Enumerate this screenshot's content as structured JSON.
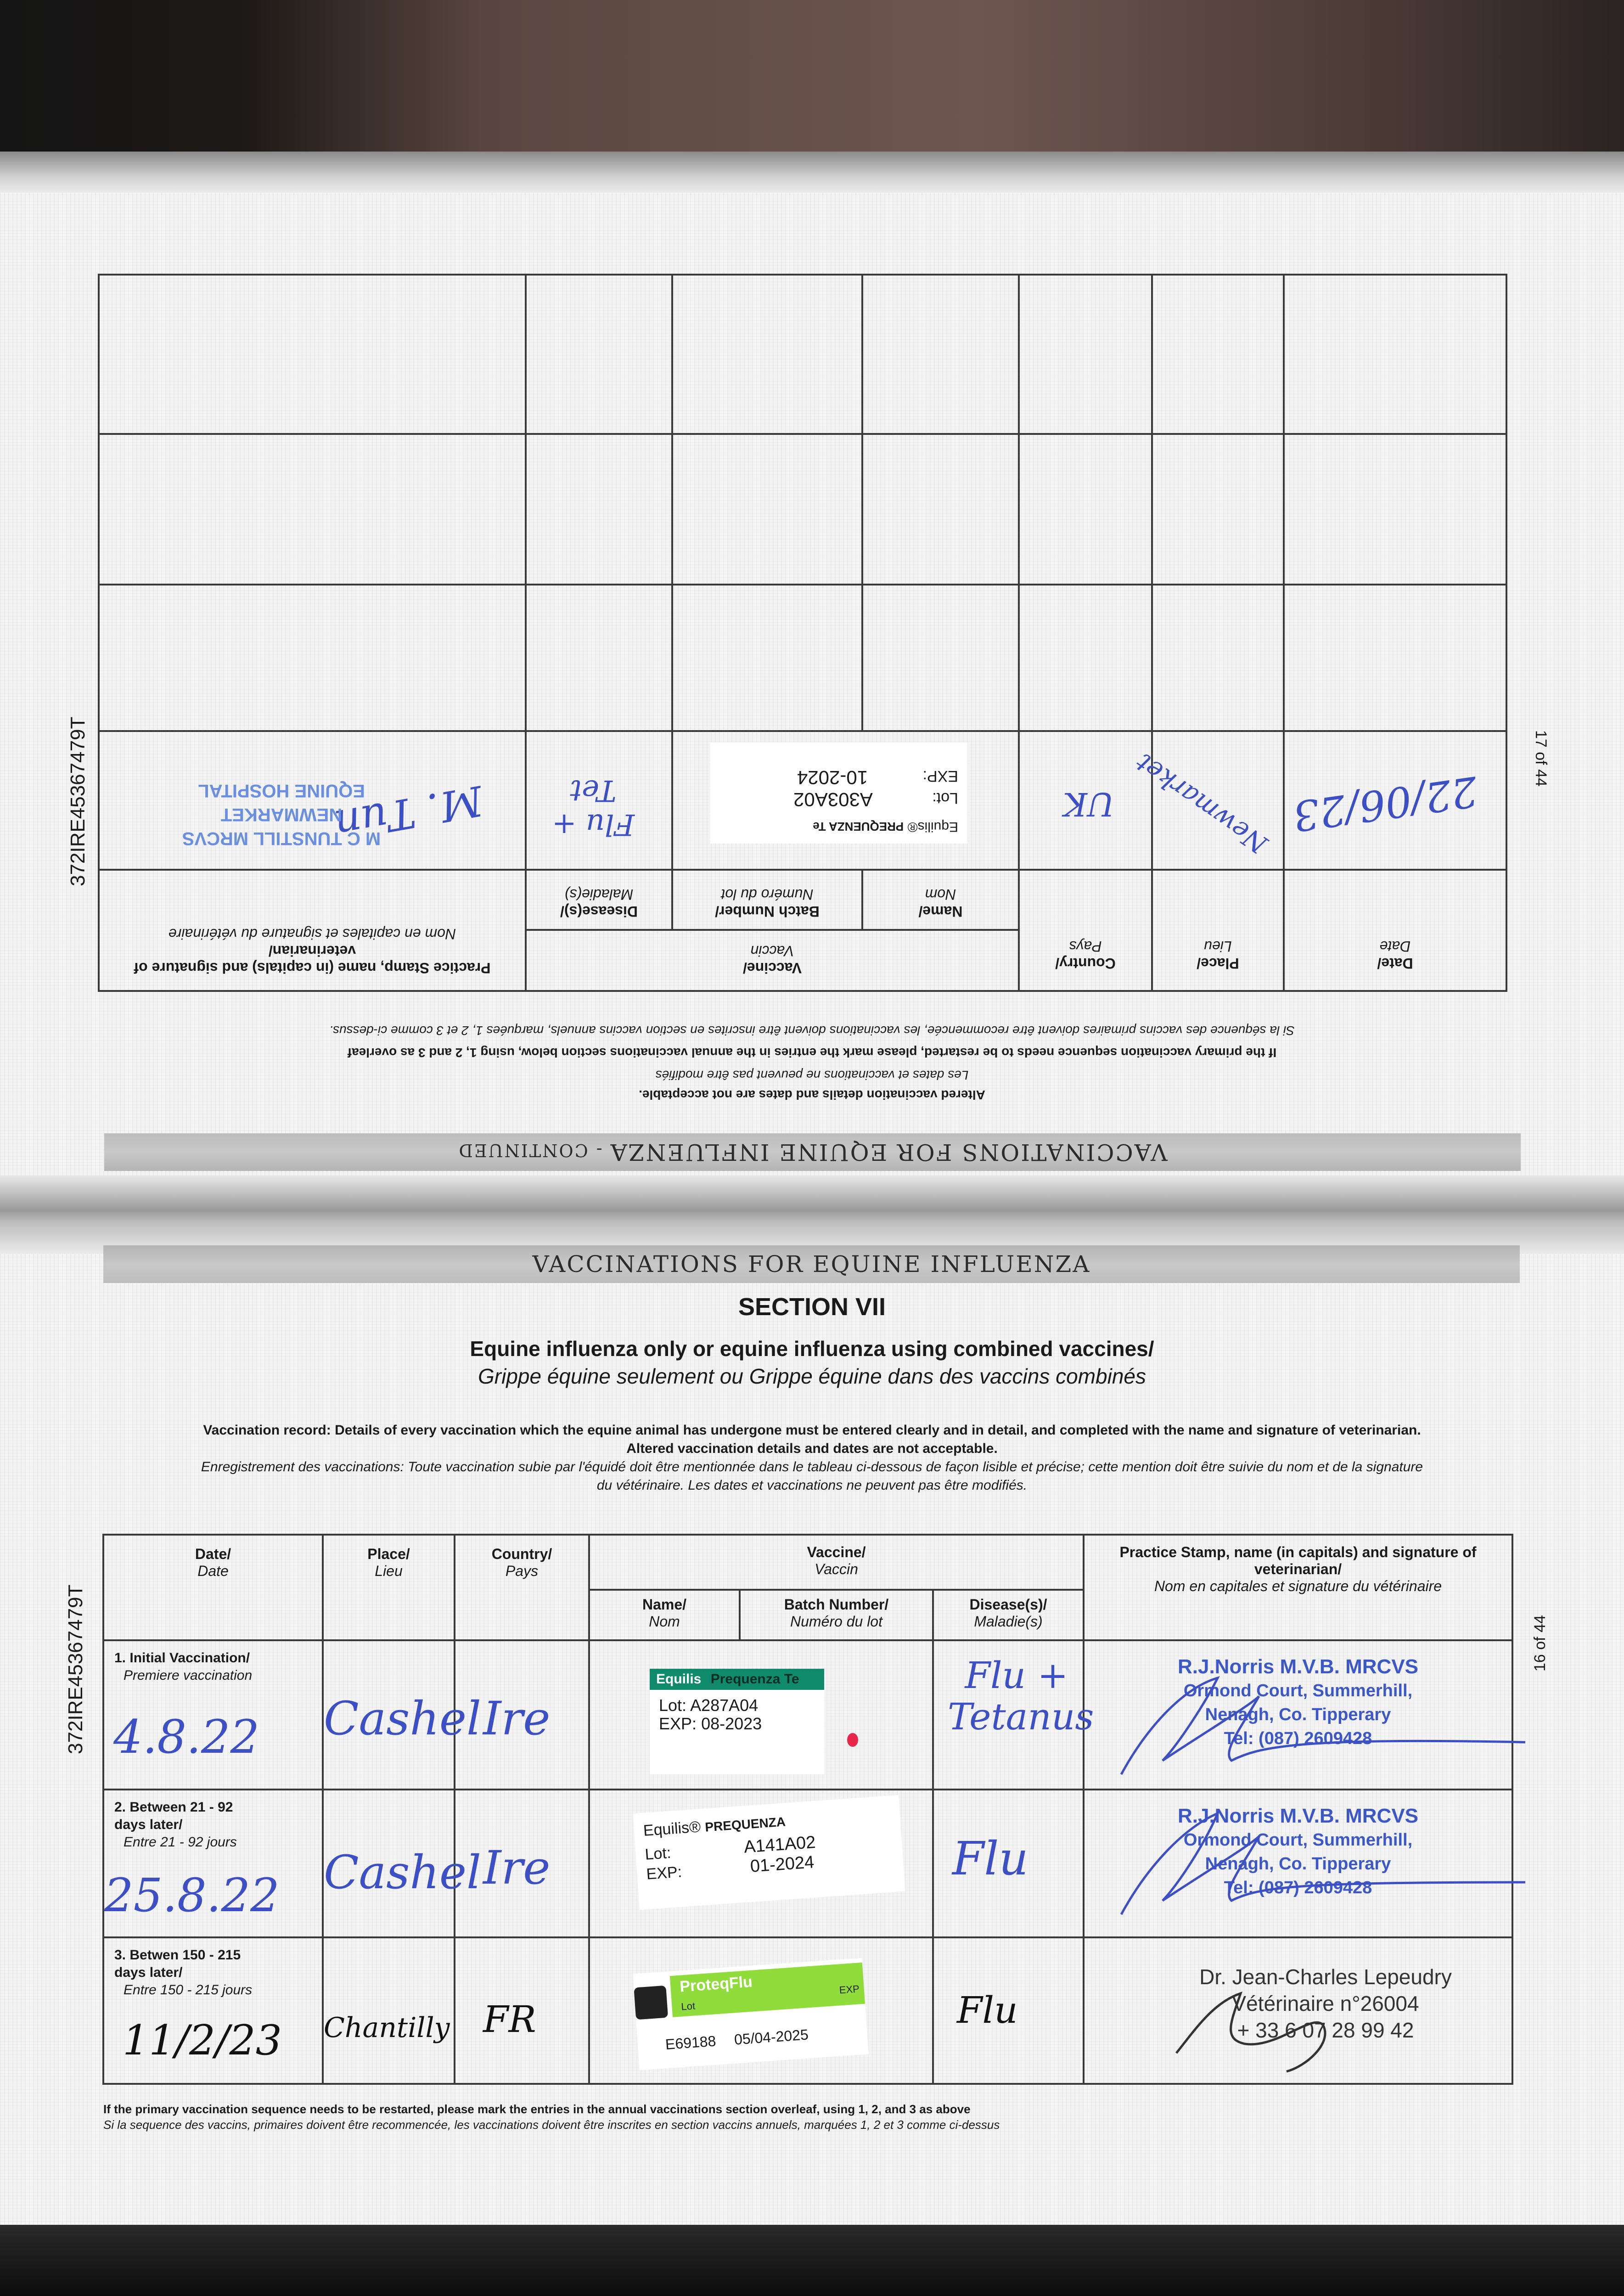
{
  "document_id": "372IRE45367479T",
  "colors": {
    "ink_blue": "#3d4fc4",
    "stamp_blue": "#3c57c8",
    "label_green": "#0f8a6a",
    "proteq_green": "#8fdc3a",
    "band_gray": "#bdbdbd"
  },
  "upper_page": {
    "page_number": "17 of 44",
    "band_title": "VACCINATIONS FOR EQUINE INFLUENZA",
    "band_suffix": " - CONTINUED",
    "notes": [
      "Altered vaccination details and dates are not acceptable.",
      "Les dates et vaccinations ne peuvent pas être modifiés",
      "If the primary vaccination sequence needs to be restarted, please mark the entries in the annual vaccinations section below, using 1, 2 and 3 as overleaf",
      "Si la séquence des vaccins primaires doivent être recommencée, les vaccinations doivent être inscrites en section vaccins annuels, marquées 1, 2 et 3 comme ci-dessus."
    ],
    "headers": {
      "date": "Date/",
      "date_fr": "Date",
      "place": "Place/",
      "place_fr": "Lieu",
      "country": "Country/",
      "country_fr": "Pays",
      "vaccine": "Vaccine/",
      "vaccine_fr": "Vaccin",
      "name": "Name/",
      "name_fr": "Nom",
      "batch": "Batch Number/",
      "batch_fr": "Numéro du lot",
      "disease": "Disease(s)/",
      "disease_fr": "Maladie(s)",
      "stamp": "Practice Stamp, name (in capitals) and signature of veterinarian/",
      "stamp_fr": "Nom en capitales et signature du vétérinaire"
    },
    "rows": [
      {
        "date": "22/06/23",
        "place": "Newmarket",
        "country": "UK",
        "vaccine_brand": "Equilis®",
        "vaccine_name": "PREQUENZA Te",
        "lot_label": "Lot:",
        "lot": "A303A02",
        "exp_label": "EXP:",
        "exp": "10-2024",
        "disease": "Flu + Tet",
        "stamp": [
          "M C TUNSTILL MRCVS",
          "NEWMARKET",
          "EQUINE HOSPITAL"
        ],
        "signature": "M. Tun"
      }
    ]
  },
  "lower_page": {
    "page_number": "16 of 44",
    "band_title": "VACCINATIONS FOR EQUINE INFLUENZA",
    "section": "SECTION VII",
    "subtitle": "Equine influenza only or equine influenza using combined vaccines/",
    "subtitle_fr": "Grippe équine seulement ou Grippe équine dans des vaccins combinés",
    "intro": "Vaccination record: Details of every vaccination which the equine animal has undergone must be entered clearly and in detail, and completed with the name and signature of veterinarian.",
    "intro2": "Altered vaccination details and dates are not acceptable.",
    "intro_fr": "Enregistrement des vaccinations: Toute vaccination subie par l'équidé doit être mentionnée dans le tableau ci-dessous de façon lisible et précise; cette mention doit être suivie du nom et de la signature",
    "intro_fr2": "du vétérinaire. Les dates et vaccinations ne peuvent pas être modifiés.",
    "headers": {
      "date": "Date/",
      "date_fr": "Date",
      "place": "Place/",
      "place_fr": "Lieu",
      "country": "Country/",
      "country_fr": "Pays",
      "vaccine": "Vaccine/",
      "vaccine_fr": "Vaccin",
      "name": "Name/",
      "name_fr": "Nom",
      "batch": "Batch Number/",
      "batch_fr": "Numéro du lot",
      "disease": "Disease(s)/",
      "disease_fr": "Maladie(s)",
      "stamp": "Practice Stamp, name (in capitals) and signature of veterinarian/",
      "stamp_fr": "Nom en capitales et signature du vétérinaire"
    },
    "rows": [
      {
        "label": "1. Initial Vaccination/",
        "label_fr": "Premiere vaccination",
        "date": "4.8.22",
        "place": "Cashel",
        "country": "Ire",
        "vaccine_brand": "Equilis",
        "vaccine_name": "Prequenza Te",
        "lot_label": "Lot:",
        "lot": "A287A04",
        "exp_label": "EXP:",
        "exp": "08-2023",
        "disease": "Flu + Tetanus",
        "stamp": [
          "R.J.Norris M.V.B. MRCVS",
          "Ormond Court, Summerhill,",
          "Nenagh, Co. Tipperary",
          "Tel: (087) 2609428"
        ]
      },
      {
        "label": "2. Between 21 - 92 days later/",
        "label_fr": "Entre 21 - 92 jours",
        "date": "25.8.22",
        "place": "Cashel",
        "country": "Ire",
        "vaccine_brand": "Equilis®",
        "vaccine_name": "PREQUENZA",
        "lot_label": "Lot:",
        "lot": "A141A02",
        "exp_label": "EXP:",
        "exp": "01-2024",
        "disease": "Flu",
        "stamp": [
          "R.J.Norris M.V.B. MRCVS",
          "Ormond Court, Summerhill,",
          "Nenagh, Co. Tipperary",
          "Tel: (087) 2609428"
        ]
      },
      {
        "label": "3. Betwen 150 - 215 days later/",
        "label_fr": "Entre 150 - 215 jours",
        "date": "11/2/23",
        "place": "Chantilly",
        "country": "FR",
        "vaccine_name": "ProteqFlu",
        "lot_label": "Lot",
        "lot": "E69188",
        "exp_label": "EXP",
        "exp": "05/04-2025",
        "disease": "Flu",
        "stamp": [
          "Dr. Jean-Charles Lepeudry",
          "Vétérinaire n°26004",
          "+ 33 6 07 28 99 42"
        ]
      }
    ],
    "footer": [
      "If the primary vaccination sequence needs to be restarted, please mark the entries in the annual vaccinations section overleaf, using 1, 2, and 3 as above",
      "Si la sequence des vaccins, primaires doivent être recommencée, les vaccinations doivent être inscrites en section vaccins annuels, marquées 1, 2 et 3 comme ci-dessus"
    ]
  }
}
